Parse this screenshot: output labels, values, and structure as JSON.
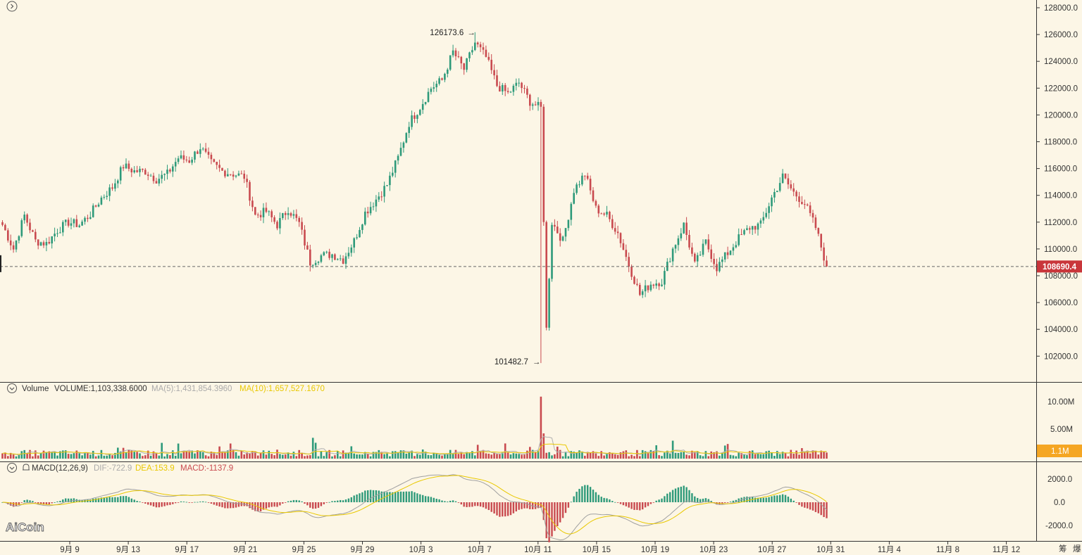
{
  "colors": {
    "background": "#fcf6e6",
    "up": "#2e9a7a",
    "down": "#c94a4f",
    "ma5": "#b0b0b0",
    "ma10": "#e9c800",
    "dif": "#a0a0a0",
    "dea": "#e9c800",
    "price_badge": "#c9363b",
    "volume_badge": "#f5a623",
    "grid": "#333333"
  },
  "icons": {
    "top_left": "chevron-circle-icon",
    "volume_toggle": "chevron-down-circle-icon",
    "macd_toggle": "chevron-down-circle-icon",
    "macd_alert": "bell-icon"
  },
  "price_axis": {
    "ticks": [
      "102000.0",
      "104000.0",
      "106000.0",
      "108000.0",
      "110000.0",
      "112000.0",
      "114000.0",
      "116000.0",
      "118000.0",
      "120000.0",
      "122000.0",
      "124000.0",
      "126000.0",
      "128000.0"
    ],
    "current_price_label": "108690.4",
    "current_price": 108690.4
  },
  "annotations": {
    "high_label": "126173.6",
    "low_label": "101482.7",
    "arrow": "→"
  },
  "volume_panel": {
    "title": "Volume",
    "volume_text": "VOLUME:1,103,338.6000",
    "ma5_text": "MA(5):1,431,854.3960",
    "ma10_text": "MA(10):1,657,527.1670",
    "ticks": [
      "10.00M",
      "5.00M"
    ],
    "badge": "1.1M"
  },
  "macd_panel": {
    "title": "MACD(12,26,9)",
    "dif_text": "DIF:-722.9",
    "dea_text": "DEA:153.9",
    "macd_text": "MACD:-1137.9",
    "ticks": [
      "2000.0",
      "0.0",
      "-2000.0"
    ]
  },
  "x_axis": {
    "labels": [
      "9月 9",
      "9月 13",
      "9月 17",
      "9月 21",
      "9月 25",
      "9月 29",
      "10月 3",
      "10月 7",
      "10月 11",
      "10月 15",
      "10月 19",
      "10月 23",
      "10月 27",
      "10月 31",
      "11月 4",
      "11月 8",
      "11月 12"
    ],
    "right_labels": [
      "筹",
      "爆"
    ]
  },
  "watermark": "AiCoin",
  "chart_data": {
    "type": "candlestick",
    "interval": "4h",
    "ylim": [
      100000,
      129000
    ],
    "price_anchors": [
      [
        0,
        111800
      ],
      [
        4,
        110000
      ],
      [
        8,
        112500
      ],
      [
        12,
        110600
      ],
      [
        16,
        110400
      ],
      [
        20,
        111400
      ],
      [
        24,
        112000
      ],
      [
        28,
        111800
      ],
      [
        32,
        112600
      ],
      [
        36,
        113800
      ],
      [
        40,
        114600
      ],
      [
        44,
        116200
      ],
      [
        48,
        115800
      ],
      [
        52,
        115800
      ],
      [
        56,
        115200
      ],
      [
        60,
        115600
      ],
      [
        64,
        116800
      ],
      [
        68,
        116600
      ],
      [
        72,
        117600
      ],
      [
        76,
        116400
      ],
      [
        80,
        115800
      ],
      [
        84,
        115600
      ],
      [
        88,
        115400
      ],
      [
        92,
        112500
      ],
      [
        96,
        112800
      ],
      [
        100,
        111800
      ],
      [
        104,
        113000
      ],
      [
        108,
        111900
      ],
      [
        112,
        109000
      ],
      [
        116,
        109500
      ],
      [
        120,
        109600
      ],
      [
        124,
        109200
      ],
      [
        128,
        110600
      ],
      [
        132,
        112700
      ],
      [
        136,
        113700
      ],
      [
        140,
        114800
      ],
      [
        144,
        116800
      ],
      [
        148,
        119400
      ],
      [
        152,
        120600
      ],
      [
        156,
        122000
      ],
      [
        160,
        122600
      ],
      [
        164,
        124700
      ],
      [
        168,
        123400
      ],
      [
        172,
        125400
      ],
      [
        176,
        124300
      ],
      [
        180,
        122200
      ],
      [
        184,
        121600
      ],
      [
        188,
        122400
      ],
      [
        192,
        121000
      ],
      [
        196,
        120500
      ],
      [
        198,
        104000
      ],
      [
        200,
        112000
      ],
      [
        204,
        110600
      ],
      [
        208,
        114400
      ],
      [
        212,
        115600
      ],
      [
        216,
        113000
      ],
      [
        220,
        112500
      ],
      [
        224,
        111200
      ],
      [
        228,
        108800
      ],
      [
        232,
        106600
      ],
      [
        236,
        107400
      ],
      [
        240,
        107600
      ],
      [
        244,
        110000
      ],
      [
        248,
        111800
      ],
      [
        252,
        108800
      ],
      [
        256,
        110500
      ],
      [
        260,
        108600
      ],
      [
        264,
        109700
      ],
      [
        268,
        110800
      ],
      [
        272,
        111600
      ],
      [
        276,
        111800
      ],
      [
        280,
        113800
      ],
      [
        284,
        115400
      ],
      [
        288,
        114200
      ],
      [
        292,
        113400
      ],
      [
        296,
        111600
      ],
      [
        300,
        108700
      ]
    ],
    "high": 126173.6,
    "low": 101482.7,
    "last_close": 108690.4,
    "volume_last": 1103338.6,
    "volume_ma5": 1431854.396,
    "volume_ma10": 1657527.167,
    "volume_ticks": [
      5000000,
      10000000
    ],
    "macd": {
      "dif": -722.9,
      "dea": 153.9,
      "macd": -1137.9,
      "ylim": [
        -3200,
        3100
      ]
    }
  }
}
